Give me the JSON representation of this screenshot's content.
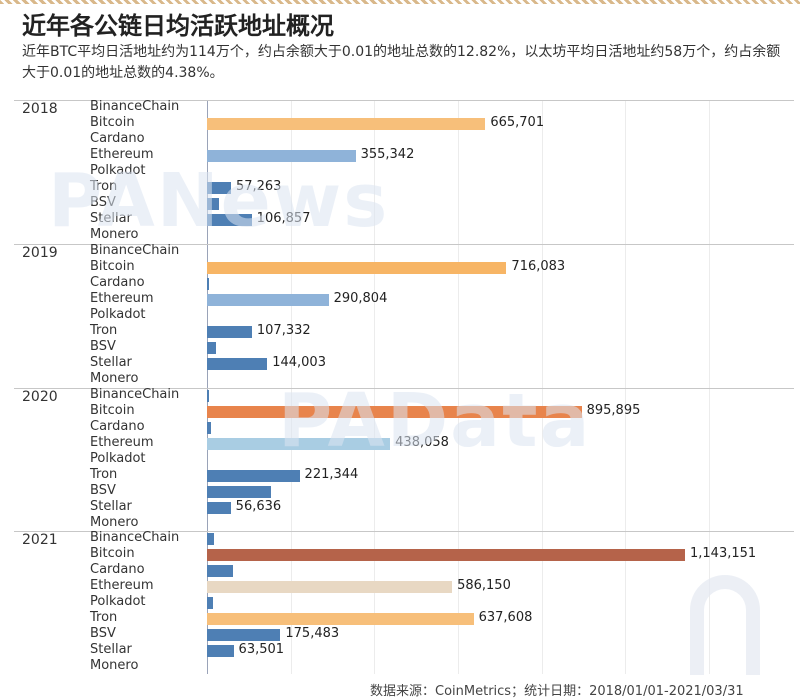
{
  "header": {
    "title": "近年各公链日均活跃地址概况",
    "subtitle": "近年BTC平均日活地址约为114万个，约占余额大于0.01的地址总数的12.82%，以太坊平均日活地址约58万个，约占余额大于0.01的地址总数的4.38%。"
  },
  "watermarks": {
    "first": "PANews",
    "second": "PAData"
  },
  "footer": {
    "text": "数据来源：CoinMetrics；统计日期：2018/01/01-2021/03/31"
  },
  "colors": {
    "bitcoin_2018": "#f7bf7a",
    "bitcoin_2019": "#f7b565",
    "bitcoin_2020": "#e8844c",
    "bitcoin_2021": "#b5634a",
    "ethereum_2018": "#8fb3d9",
    "ethereum_2019": "#8fb3d9",
    "ethereum_2020": "#a9cde3",
    "ethereum_2021": "#e8d8c3",
    "tron_2021": "#f7bf7a",
    "default": "#4e7fb4"
  },
  "chart_data": {
    "type": "bar",
    "orientation": "horizontal",
    "categories": [
      "BinanceChain",
      "Bitcoin",
      "Cardano",
      "Ethereum",
      "Polkadot",
      "Tron",
      "BSV",
      "Stellar",
      "Monero"
    ],
    "xlim": [
      0,
      1200000
    ],
    "grid": true,
    "panels": [
      {
        "year": "2018",
        "values": [
          0,
          665701,
          0,
          355342,
          0,
          57263,
          28000,
          106857,
          0
        ],
        "labels": [
          "",
          "665,701",
          "",
          "355,342",
          "",
          "57,263",
          "",
          "106,857",
          ""
        ]
      },
      {
        "year": "2019",
        "values": [
          0,
          716083,
          5000,
          290804,
          0,
          107332,
          22000,
          144003,
          0
        ],
        "labels": [
          "",
          "716,083",
          "",
          "290,804",
          "",
          "107,332",
          "",
          "144,003",
          ""
        ]
      },
      {
        "year": "2020",
        "values": [
          3000,
          895895,
          10000,
          438058,
          0,
          221344,
          153000,
          56636,
          0
        ],
        "labels": [
          "",
          "895,895",
          "",
          "438,058",
          "",
          "221,344",
          "",
          "56,636",
          ""
        ]
      },
      {
        "year": "2021",
        "values": [
          17000,
          1143151,
          62000,
          586150,
          14000,
          637608,
          175483,
          63501,
          0
        ],
        "labels": [
          "",
          "1,143,151",
          "",
          "586,150",
          "",
          "637,608",
          "175,483",
          "63,501",
          ""
        ]
      }
    ]
  }
}
